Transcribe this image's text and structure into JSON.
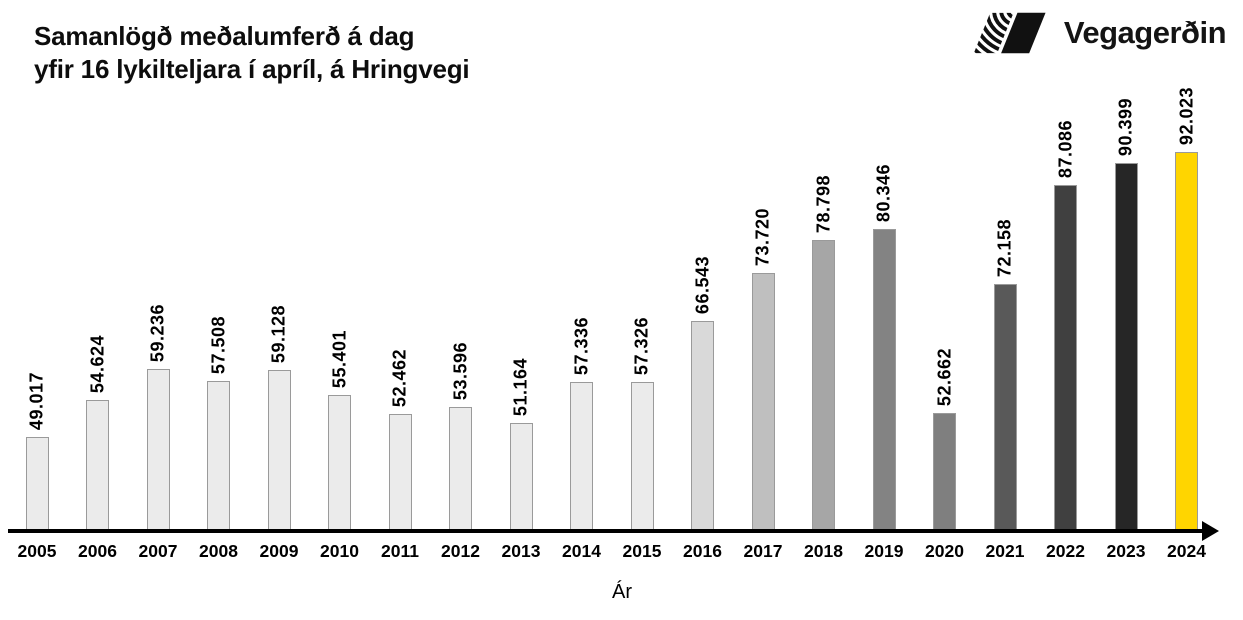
{
  "page": {
    "background": "#ffffff"
  },
  "logo": {
    "text": "Vegagerðin",
    "icon": "vegagerdin-stripes-icon",
    "color": "#141414"
  },
  "chart_data": {
    "type": "bar",
    "title": "Samanlögð meðalumferð á dag yfir 16 lykilteljara í apríl, á Hringvegi",
    "title_lines": [
      "Samanlögð meðalumferð á dag",
      "yfir 16 lykilteljara í apríl, á Hringvegi"
    ],
    "xlabel": "Ár",
    "ylabel": "",
    "categories": [
      "2005",
      "2006",
      "2007",
      "2008",
      "2009",
      "2010",
      "2011",
      "2012",
      "2013",
      "2014",
      "2015",
      "2016",
      "2017",
      "2018",
      "2019",
      "2020",
      "2021",
      "2022",
      "2023",
      "2024"
    ],
    "values": [
      49017,
      54624,
      59236,
      57508,
      59128,
      55401,
      52462,
      53596,
      51164,
      57336,
      57326,
      66543,
      73720,
      78798,
      80346,
      52662,
      72158,
      87086,
      90399,
      92023
    ],
    "value_labels": [
      "49.017",
      "54.624",
      "59.236",
      "57.508",
      "59.128",
      "55.401",
      "52.462",
      "53.596",
      "51.164",
      "57.336",
      "57.326",
      "66.543",
      "73.720",
      "78.798",
      "80.346",
      "52.662",
      "72.158",
      "87.086",
      "90.399",
      "92.023"
    ],
    "bar_colors": [
      "#ebebeb",
      "#ebebeb",
      "#ebebeb",
      "#ebebeb",
      "#ebebeb",
      "#ebebeb",
      "#ebebeb",
      "#ebebeb",
      "#ebebeb",
      "#ebebeb",
      "#ebebeb",
      "#d9d9d9",
      "#bfbfbf",
      "#a6a6a6",
      "#838383",
      "#7f7f7f",
      "#595959",
      "#404040",
      "#262626",
      "#ffd500"
    ],
    "bar_border_color": "#9a9a9a",
    "highlight_year": "2024",
    "highlight_color": "#ffd500",
    "baseline_value": 35000,
    "ylim": [
      35000,
      95000
    ],
    "grid": false,
    "legend": false,
    "value_label_rotation": 90,
    "axis_arrow": "right"
  }
}
